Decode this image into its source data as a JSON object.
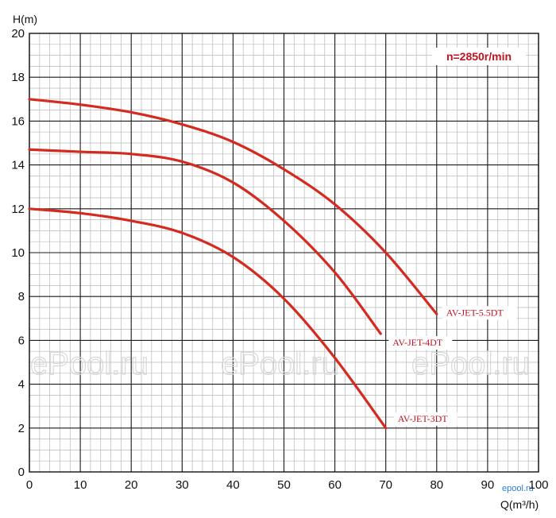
{
  "chart_data": {
    "type": "line",
    "xlabel": "Q(m³/h)",
    "ylabel": "H(m)",
    "xlim": [
      0,
      100
    ],
    "ylim": [
      0,
      20
    ],
    "x_ticks": [
      "0",
      "10",
      "20",
      "30",
      "40",
      "50",
      "60",
      "70",
      "80",
      "90",
      "100"
    ],
    "y_ticks": [
      "0",
      "2",
      "4",
      "6",
      "8",
      "10",
      "12",
      "14",
      "16",
      "18",
      "20"
    ],
    "grid": true,
    "annotation": "n=2850r/min",
    "series": [
      {
        "name": "AV-JET-5.5DT",
        "color": "#d42a20",
        "x": [
          0,
          10,
          20,
          30,
          40,
          50,
          60,
          70,
          80
        ],
        "y": [
          17.0,
          16.75,
          16.4,
          15.85,
          15.05,
          13.8,
          12.2,
          10.0,
          7.2
        ]
      },
      {
        "name": "AV-JET-4DT",
        "color": "#d42a20",
        "x": [
          0,
          10,
          20,
          30,
          40,
          50,
          60,
          69
        ],
        "y": [
          14.7,
          14.6,
          14.5,
          14.15,
          13.2,
          11.45,
          9.1,
          6.3
        ]
      },
      {
        "name": "AV-JET-3DT",
        "color": "#d42a20",
        "x": [
          0,
          10,
          20,
          30,
          40,
          50,
          60,
          70
        ],
        "y": [
          12.0,
          11.8,
          11.45,
          10.9,
          9.8,
          7.9,
          5.2,
          2.0
        ]
      }
    ]
  },
  "watermark": {
    "text": "ePool.ru",
    "small_text": "epool.ru"
  }
}
